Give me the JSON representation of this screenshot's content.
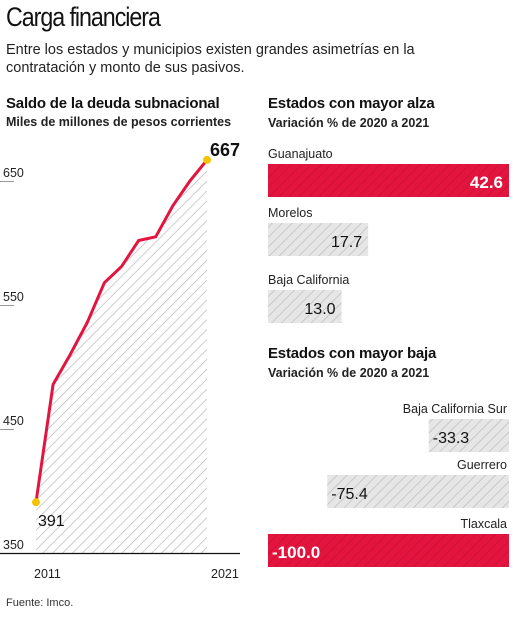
{
  "title": "Carga financiera",
  "subtitle": "Entre los estados y municipios existen grandes asimetrías en la contratación y monto de sus pasivos.",
  "source": "Fuente: Imco.",
  "colors": {
    "accent": "#e3153e",
    "highlight": "#f5c400",
    "hatch_bg": "#e4e4e4",
    "hatch_line": "#b8b8b8"
  },
  "chart_data": [
    {
      "type": "line",
      "title": "Saldo de la deuda subnacional",
      "subtitle": "Miles de millones de pesos corrientes",
      "x": [
        2011,
        2012,
        2013,
        2014,
        2015,
        2016,
        2017,
        2018,
        2019,
        2020,
        2021
      ],
      "y": [
        391,
        486,
        510,
        536,
        568,
        581,
        602,
        605,
        630,
        650,
        667
      ],
      "x_tick_labels": [
        "2011",
        "2021"
      ],
      "y_ticks": [
        350,
        450,
        550,
        650
      ],
      "ylim": [
        350,
        680
      ],
      "xlim": [
        2011,
        2021
      ],
      "annotations": [
        {
          "x": 2011,
          "y": 391,
          "label": "391"
        },
        {
          "x": 2021,
          "y": 667,
          "label": "667"
        }
      ],
      "grid": false,
      "fill": "hatched area under line"
    },
    {
      "type": "bar",
      "orientation": "horizontal",
      "title": "Estados con mayor alza",
      "subtitle": "Variación % de 2020 a 2021",
      "categories": [
        "Guanajuato",
        "Morelos",
        "Baja California"
      ],
      "values": [
        42.6,
        17.7,
        13.0
      ],
      "value_labels": [
        "42.6",
        "17.7",
        "13.0"
      ],
      "highlight": [
        "Guanajuato"
      ],
      "xlim": [
        0,
        42.6
      ]
    },
    {
      "type": "bar",
      "orientation": "horizontal",
      "title": "Estados con mayor baja",
      "subtitle": "Variación % de 2020 a 2021",
      "categories": [
        "Baja California Sur",
        "Guerrero",
        "Tlaxcala"
      ],
      "values": [
        -33.3,
        -75.4,
        -100.0
      ],
      "value_labels": [
        "-33.3",
        "-75.4",
        "-100.0"
      ],
      "highlight": [
        "Tlaxcala"
      ],
      "xlim": [
        -100,
        0
      ]
    }
  ]
}
